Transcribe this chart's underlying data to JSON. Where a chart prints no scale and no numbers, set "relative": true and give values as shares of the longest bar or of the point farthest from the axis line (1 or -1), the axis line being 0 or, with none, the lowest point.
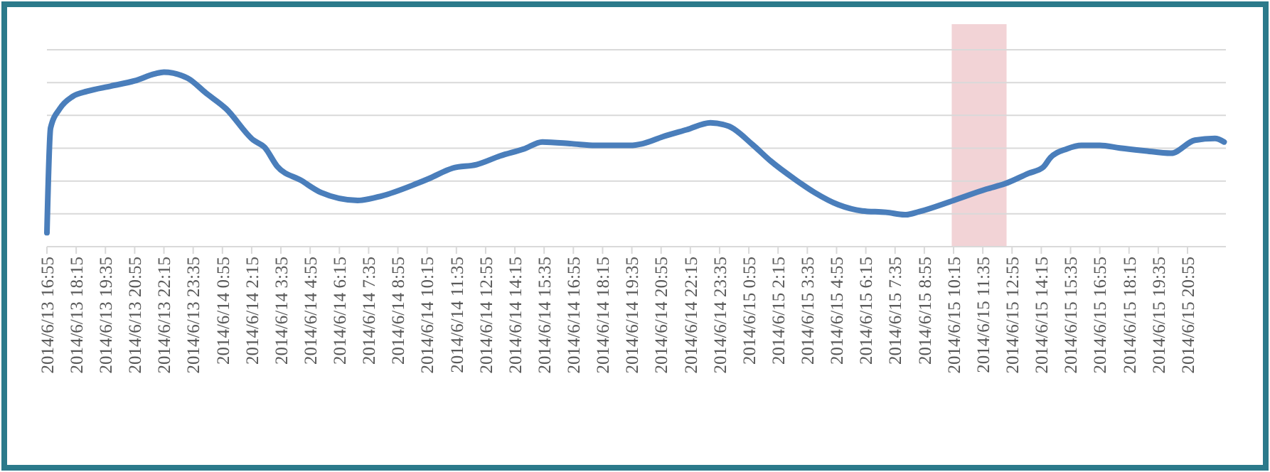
{
  "chart_data": {
    "type": "line",
    "relative": true,
    "grid": "y",
    "xlim": [
      "2014-06-13T16:55",
      "2014-06-15T22:40"
    ],
    "xticks": [
      {
        "value": "2014-06-13T16:55",
        "label": "2014/6/13 16:55"
      },
      {
        "value": "2014-06-13T18:15",
        "label": "2014/6/13 18:15"
      },
      {
        "value": "2014-06-13T19:35",
        "label": "2014/6/13 19:35"
      },
      {
        "value": "2014-06-13T20:55",
        "label": "2014/6/13 20:55"
      },
      {
        "value": "2014-06-13T22:15",
        "label": "2014/6/13 22:15"
      },
      {
        "value": "2014-06-13T23:35",
        "label": "2014/6/13 23:35"
      },
      {
        "value": "2014-06-14T00:55",
        "label": "2014/6/14 0:55"
      },
      {
        "value": "2014-06-14T02:15",
        "label": "2014/6/14 2:15"
      },
      {
        "value": "2014-06-14T03:35",
        "label": "2014/6/14 3:35"
      },
      {
        "value": "2014-06-14T04:55",
        "label": "2014/6/14 4:55"
      },
      {
        "value": "2014-06-14T06:15",
        "label": "2014/6/14 6:15"
      },
      {
        "value": "2014-06-14T07:35",
        "label": "2014/6/14 7:35"
      },
      {
        "value": "2014-06-14T08:55",
        "label": "2014/6/14 8:55"
      },
      {
        "value": "2014-06-14T10:15",
        "label": "2014/6/14 10:15"
      },
      {
        "value": "2014-06-14T11:35",
        "label": "2014/6/14 11:35"
      },
      {
        "value": "2014-06-14T12:55",
        "label": "2014/6/14 12:55"
      },
      {
        "value": "2014-06-14T14:15",
        "label": "2014/6/14 14:15"
      },
      {
        "value": "2014-06-14T15:35",
        "label": "2014/6/14 15:35"
      },
      {
        "value": "2014-06-14T16:55",
        "label": "2014/6/14 16:55"
      },
      {
        "value": "2014-06-14T18:15",
        "label": "2014/6/14 18:15"
      },
      {
        "value": "2014-06-14T19:35",
        "label": "2014/6/14 19:35"
      },
      {
        "value": "2014-06-14T20:55",
        "label": "2014/6/14 20:55"
      },
      {
        "value": "2014-06-14T22:15",
        "label": "2014/6/14 22:15"
      },
      {
        "value": "2014-06-14T23:35",
        "label": "2014/6/14 23:35"
      },
      {
        "value": "2014-06-15T00:55",
        "label": "2014/6/15 0:55"
      },
      {
        "value": "2014-06-15T02:15",
        "label": "2014/6/15 2:15"
      },
      {
        "value": "2014-06-15T03:35",
        "label": "2014/6/15 3:35"
      },
      {
        "value": "2014-06-15T04:55",
        "label": "2014/6/15 4:55"
      },
      {
        "value": "2014-06-15T06:15",
        "label": "2014/6/15 6:15"
      },
      {
        "value": "2014-06-15T07:35",
        "label": "2014/6/15 7:35"
      },
      {
        "value": "2014-06-15T08:55",
        "label": "2014/6/15 8:55"
      },
      {
        "value": "2014-06-15T10:15",
        "label": "2014/6/15 10:15"
      },
      {
        "value": "2014-06-15T11:35",
        "label": "2014/6/15 11:35"
      },
      {
        "value": "2014-06-15T12:55",
        "label": "2014/6/15 12:55"
      },
      {
        "value": "2014-06-15T14:15",
        "label": "2014/6/15 14:15"
      },
      {
        "value": "2014-06-15T15:35",
        "label": "2014/6/15 15:35"
      },
      {
        "value": "2014-06-15T16:55",
        "label": "2014/6/15 16:55"
      },
      {
        "value": "2014-06-15T18:15",
        "label": "2014/6/15 18:15"
      },
      {
        "value": "2014-06-15T19:35",
        "label": "2014/6/15 19:35"
      },
      {
        "value": "2014-06-15T20:55",
        "label": "2014/6/15 20:55"
      }
    ],
    "bands": [
      {
        "axis": "x",
        "from": "2014-06-15T10:10",
        "to": "2014-06-15T12:40",
        "color": "#f2d3d6"
      }
    ],
    "series": [
      {
        "color": "#4a7ebb",
        "x": [
          "2014-06-13T16:55",
          "2014-06-13T17:05",
          "2014-06-13T17:30",
          "2014-06-13T18:05",
          "2014-06-13T18:45",
          "2014-06-13T19:50",
          "2014-06-13T20:55",
          "2014-06-13T21:50",
          "2014-06-13T22:15",
          "2014-06-13T23:20",
          "2014-06-14T00:10",
          "2014-06-14T01:05",
          "2014-06-14T02:20",
          "2014-06-14T02:50",
          "2014-06-14T03:25",
          "2014-06-14T04:30",
          "2014-06-14T05:25",
          "2014-06-14T07:05",
          "2014-06-14T08:10",
          "2014-06-14T09:45",
          "2014-06-14T10:20",
          "2014-06-14T11:25",
          "2014-06-14T12:30",
          "2014-06-14T13:35",
          "2014-06-14T14:40",
          "2014-06-14T15:30",
          "2014-06-14T16:50",
          "2014-06-14T17:55",
          "2014-06-14T19:30",
          "2014-06-14T20:05",
          "2014-06-14T21:00",
          "2014-06-14T22:05",
          "2014-06-14T23:10",
          "2014-06-15T00:00",
          "2014-06-15T01:05",
          "2014-06-15T01:55",
          "2014-06-15T03:05",
          "2014-06-15T03:55",
          "2014-06-15T05:00",
          "2014-06-15T06:05",
          "2014-06-15T07:10",
          "2014-06-15T08:05",
          "2014-06-15T08:40",
          "2014-06-15T10:15",
          "2014-06-15T11:45",
          "2014-06-15T12:35",
          "2014-06-15T13:40",
          "2014-06-15T14:20",
          "2014-06-15T14:40",
          "2014-06-15T15:25",
          "2014-06-15T16:05",
          "2014-06-15T16:55",
          "2014-06-15T17:50",
          "2014-06-15T18:55",
          "2014-06-15T20:10",
          "2014-06-15T21:15",
          "2014-06-15T22:10",
          "2014-06-15T22:35"
        ],
        "values": [
          0.08,
          0.68,
          0.79,
          0.86,
          0.89,
          0.92,
          0.95,
          0.99,
          1.0,
          0.965,
          0.88,
          0.79,
          0.61,
          0.57,
          0.46,
          0.38,
          0.31,
          0.265,
          0.29,
          0.36,
          0.39,
          0.45,
          0.47,
          0.52,
          0.56,
          0.6,
          0.59,
          0.58,
          0.58,
          0.59,
          0.63,
          0.67,
          0.71,
          0.69,
          0.585,
          0.49,
          0.38,
          0.31,
          0.24,
          0.205,
          0.197,
          0.183,
          0.2,
          0.265,
          0.33,
          0.36,
          0.42,
          0.455,
          0.51,
          0.56,
          0.58,
          0.58,
          0.565,
          0.55,
          0.535,
          0.61,
          0.62,
          0.6
        ]
      }
    ]
  }
}
